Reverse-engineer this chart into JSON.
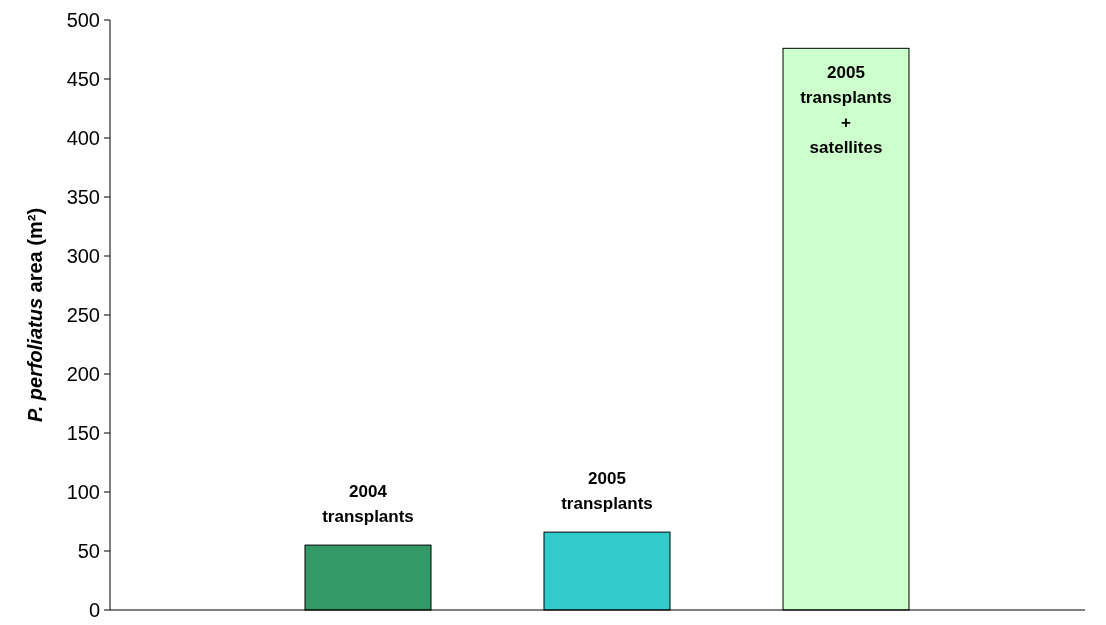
{
  "chart_data": {
    "type": "bar",
    "ylabel": "P. perfoliatus area (m²)",
    "categories": [
      "2004 transplants",
      "2005 transplants",
      "2005 transplants + satellites"
    ],
    "values": [
      55,
      66,
      476
    ],
    "colors": [
      "#339966",
      "#33cccc",
      "#ccffcc"
    ],
    "ylim": [
      0,
      500
    ],
    "yticks": [
      0,
      50,
      100,
      150,
      200,
      250,
      300,
      350,
      400,
      450,
      500
    ],
    "grid": false
  }
}
